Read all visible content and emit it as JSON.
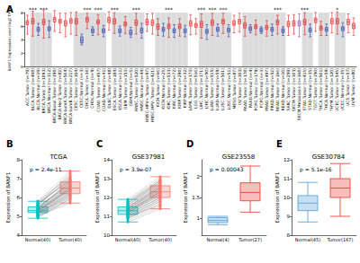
{
  "chart_data": [
    {
      "type": "boxplot",
      "panel": "A",
      "ylabel": "BANF1 Expression Level (log2 TPM)",
      "categories": [
        "ACC.Tumor (n=79)",
        "BLCA.Tumor (n=408)",
        "BLCA.Normal (n=19)",
        "BRCA.Tumor (n=1093)",
        "BRCA.Normal (n=112)",
        "BRCA-Basal.Tumor (n=190)",
        "BRCA-Her2.Tumor (n=82)",
        "BRCA-LumA.Tumor (n=564)",
        "BRCA-LumB.Tumor (n=217)",
        "CESC.Tumor (n=304)",
        "CESC.Normal (n=3)",
        "CHOL.Tumor (n=36)",
        "CHOL.Normal (n=9)",
        "COAD.Tumor (n=457)",
        "COAD.Normal (n=41)",
        "DLBC.Tumor (n=48)",
        "ESCA.Tumor (n=184)",
        "ESCA.Normal (n=11)",
        "GBM.Tumor (n=153)",
        "GBM.Normal (n=5)",
        "HNSC.Tumor (n=520)",
        "HNSC.Normal (n=44)",
        "HNSC-HPV+.Tumor (n=97)",
        "HNSC-HPV-.Tumor (n=421)",
        "KICH.Tumor (n=66)",
        "KICH.Normal (n=25)",
        "KIRC.Tumor (n=533)",
        "KIRC.Normal (n=72)",
        "KIRP.Tumor (n=290)",
        "KIRP.Normal (n=32)",
        "LAML.Tumor (n=173)",
        "LGG.Tumor (n=516)",
        "LIHC.Tumor (n=371)",
        "LIHC.Normal (n=50)",
        "LUAD.Tumor (n=515)",
        "LUAD.Normal (n=59)",
        "LUSC.Tumor (n=501)",
        "LUSC.Normal (n=51)",
        "MESO.Tumor (n=87)",
        "OV.Tumor (n=303)",
        "PAAD.Tumor (n=178)",
        "PAAD.Normal (n=4)",
        "PCPG.Tumor (n=179)",
        "PCPG.Normal (n=3)",
        "PRAD.Tumor (n=497)",
        "PRAD.Normal (n=52)",
        "READ.Tumor (n=166)",
        "READ.Normal (n=10)",
        "SARC.Tumor (n=259)",
        "SKCM.Tumor (n=103)",
        "SKCM.Metastasis (n=368)",
        "STAD.Tumor (n=415)",
        "STAD.Normal (n=35)",
        "TGCT.Tumor (n=150)",
        "THCA.Tumor (n=501)",
        "THCA.Normal (n=59)",
        "THYM.Tumor (n=120)",
        "UCEC.Tumor (n=545)",
        "UCEC.Normal (n=35)",
        "UCS.Tumor (n=57)",
        "UVM.Tumor (n=80)"
      ],
      "values": [
        [
          4.8,
          6.2,
          6.5,
          6.8,
          7.6
        ],
        [
          4.5,
          6.3,
          6.7,
          7.1,
          8.2
        ],
        [
          4.6,
          5.2,
          5.5,
          5.8,
          6.4
        ],
        [
          4.2,
          6.2,
          6.6,
          7.0,
          8.3
        ],
        [
          4.3,
          5.3,
          5.6,
          5.9,
          6.8
        ],
        [
          5.2,
          6.6,
          7.0,
          7.3,
          8.3
        ],
        [
          5.0,
          6.4,
          6.7,
          7.0,
          7.9
        ],
        [
          4.4,
          6.0,
          6.4,
          6.8,
          7.9
        ],
        [
          4.8,
          6.4,
          6.8,
          7.1,
          8.0
        ],
        [
          4.6,
          6.3,
          6.7,
          7.1,
          8.1
        ],
        [
          3.2,
          3.5,
          3.9,
          4.4,
          4.8
        ],
        [
          5.6,
          6.6,
          7.0,
          7.3,
          7.9
        ],
        [
          4.6,
          5.0,
          5.3,
          5.6,
          5.9
        ],
        [
          4.7,
          6.3,
          6.6,
          6.9,
          7.7
        ],
        [
          4.4,
          5.0,
          5.3,
          5.6,
          6.1
        ],
        [
          5.4,
          6.5,
          6.9,
          7.3,
          8.1
        ],
        [
          4.9,
          6.3,
          6.7,
          7.1,
          8.0
        ],
        [
          4.5,
          5.0,
          5.3,
          5.6,
          6.0
        ],
        [
          4.9,
          6.0,
          6.3,
          6.6,
          7.4
        ],
        [
          4.3,
          4.7,
          5.0,
          5.4,
          5.8
        ],
        [
          4.8,
          6.1,
          6.5,
          6.9,
          7.9
        ],
        [
          4.2,
          5.0,
          5.4,
          5.7,
          6.4
        ],
        [
          5.2,
          6.2,
          6.6,
          7.0,
          7.8
        ],
        [
          4.8,
          6.1,
          6.5,
          6.9,
          7.9
        ],
        [
          4.6,
          5.5,
          5.9,
          6.3,
          7.1
        ],
        [
          4.5,
          5.2,
          5.5,
          5.8,
          6.4
        ],
        [
          4.3,
          5.6,
          6.0,
          6.3,
          7.2
        ],
        [
          4.3,
          5.0,
          5.3,
          5.6,
          6.2
        ],
        [
          4.5,
          5.6,
          5.9,
          6.3,
          7.1
        ],
        [
          4.4,
          5.0,
          5.3,
          5.6,
          6.1
        ],
        [
          4.7,
          6.0,
          6.4,
          6.8,
          7.7
        ],
        [
          4.8,
          5.8,
          6.1,
          6.4,
          7.1
        ],
        [
          4.2,
          5.8,
          6.3,
          6.7,
          7.8
        ],
        [
          4.0,
          4.9,
          5.2,
          5.5,
          6.2
        ],
        [
          4.6,
          6.1,
          6.5,
          6.9,
          7.9
        ],
        [
          4.5,
          5.2,
          5.5,
          5.8,
          6.3
        ],
        [
          4.9,
          6.3,
          6.7,
          7.0,
          7.9
        ],
        [
          4.4,
          5.1,
          5.4,
          5.7,
          6.2
        ],
        [
          5.0,
          6.1,
          6.4,
          6.8,
          7.6
        ],
        [
          5.1,
          6.3,
          6.7,
          7.0,
          7.9
        ],
        [
          4.5,
          5.7,
          6.1,
          6.5,
          7.4
        ],
        [
          5.0,
          5.3,
          5.6,
          5.9,
          6.2
        ],
        [
          4.7,
          5.6,
          5.9,
          6.2,
          6.9
        ],
        [
          4.9,
          5.1,
          5.4,
          5.7,
          5.9
        ],
        [
          4.5,
          5.5,
          5.8,
          6.1,
          6.8
        ],
        [
          4.6,
          5.2,
          5.5,
          5.8,
          6.3
        ],
        [
          4.8,
          6.2,
          6.6,
          6.9,
          7.6
        ],
        [
          4.6,
          5.0,
          5.3,
          5.6,
          5.9
        ],
        [
          4.6,
          5.9,
          6.3,
          6.7,
          7.6
        ],
        [
          4.8,
          6.0,
          6.4,
          6.8,
          7.7
        ],
        [
          4.4,
          6.0,
          6.4,
          6.8,
          7.8
        ],
        [
          4.7,
          6.2,
          6.6,
          7.0,
          8.0
        ],
        [
          4.4,
          5.1,
          5.4,
          5.7,
          6.3
        ],
        [
          5.2,
          6.5,
          6.9,
          7.2,
          8.0
        ],
        [
          4.6,
          5.4,
          5.7,
          6.0,
          6.7
        ],
        [
          4.6,
          5.2,
          5.5,
          5.8,
          6.3
        ],
        [
          5.0,
          6.3,
          6.7,
          7.1,
          8.0
        ],
        [
          4.8,
          6.3,
          6.7,
          7.1,
          8.1
        ],
        [
          4.4,
          5.3,
          5.6,
          5.9,
          6.5
        ],
        [
          5.0,
          6.2,
          6.6,
          7.0,
          7.8
        ],
        [
          4.6,
          5.6,
          6.0,
          6.4,
          7.2
        ]
      ],
      "colors": [
        "#E41A1C",
        "#E41A1C",
        "#2C3EAA",
        "#E41A1C",
        "#2C3EAA",
        "#E41A1C",
        "#E41A1C",
        "#E41A1C",
        "#E41A1C",
        "#E41A1C",
        "#2C3EAA",
        "#E41A1C",
        "#2C3EAA",
        "#E41A1C",
        "#2C3EAA",
        "#E41A1C",
        "#E41A1C",
        "#2C3EAA",
        "#E41A1C",
        "#2C3EAA",
        "#E41A1C",
        "#2C3EAA",
        "#E41A1C",
        "#E41A1C",
        "#E41A1C",
        "#2C3EAA",
        "#E41A1C",
        "#2C3EAA",
        "#E41A1C",
        "#2C3EAA",
        "#E41A1C",
        "#E41A1C",
        "#E41A1C",
        "#2C3EAA",
        "#E41A1C",
        "#2C3EAA",
        "#E41A1C",
        "#2C3EAA",
        "#E41A1C",
        "#E41A1C",
        "#E41A1C",
        "#2C3EAA",
        "#E41A1C",
        "#2C3EAA",
        "#E41A1C",
        "#2C3EAA",
        "#E41A1C",
        "#2C3EAA",
        "#E41A1C",
        "#E41A1C",
        "#8E44AD",
        "#E41A1C",
        "#2C3EAA",
        "#E41A1C",
        "#E41A1C",
        "#2C3EAA",
        "#E41A1C",
        "#E41A1C",
        "#2C3EAA",
        "#E41A1C",
        "#E41A1C"
      ],
      "significance": [
        null,
        "***",
        null,
        "***",
        null,
        null,
        null,
        null,
        null,
        null,
        null,
        "***",
        null,
        "***",
        null,
        null,
        "***",
        null,
        null,
        null,
        "***",
        null,
        null,
        null,
        null,
        null,
        "***",
        null,
        null,
        null,
        null,
        null,
        "***",
        null,
        "***",
        null,
        "***",
        null,
        null,
        null,
        null,
        null,
        null,
        null,
        null,
        null,
        "***",
        null,
        null,
        null,
        null,
        "***",
        null,
        null,
        null,
        null,
        null,
        "*",
        null,
        null,
        null
      ],
      "ylim": [
        0,
        8
      ],
      "yticks": [
        0,
        2,
        4,
        6,
        8
      ]
    },
    {
      "type": "paired",
      "panel": "B",
      "title": "TCGA",
      "ylabel": "Expression of BANF1",
      "annotation": "p = 2.4e-11",
      "categories": [
        "Normal(40)",
        "Tumor(40)"
      ],
      "colors": [
        "#00BFC4",
        "#F8766D"
      ],
      "values": [
        [
          5.2,
          5.4,
          5.0,
          5.6,
          5.3,
          5.1,
          5.5,
          5.7,
          4.9,
          5.3,
          5.4,
          5.2,
          5.8,
          5.0,
          5.5,
          5.3,
          5.6,
          5.1,
          5.4,
          5.2,
          5.7,
          5.3,
          5.0,
          5.5,
          5.4,
          5.2,
          5.6,
          5.3,
          5.1,
          5.8,
          5.4,
          5.2,
          5.5,
          5.0,
          5.3,
          5.6,
          5.4,
          5.1,
          5.7,
          5.3
        ],
        [
          6.4,
          6.8,
          6.1,
          7.0,
          6.5,
          5.9,
          6.7,
          7.2,
          6.0,
          6.3,
          6.9,
          6.2,
          7.1,
          5.8,
          6.6,
          6.4,
          7.3,
          6.1,
          6.8,
          6.5,
          6.9,
          6.2,
          5.7,
          6.7,
          6.4,
          6.0,
          7.0,
          6.6,
          6.3,
          7.4,
          6.5,
          6.1,
          6.8,
          5.9,
          6.4,
          7.1,
          6.6,
          6.2,
          6.9,
          6.5
        ]
      ],
      "ylim": [
        4,
        8
      ],
      "yticks": [
        4,
        5,
        6,
        7,
        8
      ]
    },
    {
      "type": "paired",
      "panel": "C",
      "title": "GSE37981",
      "ylabel": "Expression of BANF1",
      "annotation": "p = 3.9e-07",
      "categories": [
        "Normal(40)",
        "Tumor(40)"
      ],
      "colors": [
        "#00BFC4",
        "#F8766D"
      ],
      "values": [
        [
          11.2,
          11.5,
          10.9,
          11.8,
          11.3,
          11.0,
          11.6,
          11.4,
          10.8,
          11.3,
          11.7,
          11.1,
          11.5,
          11.2,
          10.7,
          11.4,
          11.9,
          11.0,
          11.3,
          11.6,
          11.2,
          11.5,
          10.9,
          11.4,
          11.1,
          11.7,
          11.3,
          11.0,
          11.5,
          11.2,
          11.8,
          11.4,
          10.9,
          11.3,
          11.6,
          11.1,
          11.4,
          11.2,
          11.7,
          11.0
        ],
        [
          12.1,
          12.6,
          11.8,
          12.9,
          12.3,
          11.6,
          12.7,
          12.4,
          11.5,
          12.2,
          12.8,
          12.0,
          12.5,
          12.3,
          11.4,
          12.6,
          13.1,
          11.9,
          12.4,
          12.8,
          12.2,
          12.7,
          11.7,
          12.5,
          12.0,
          12.9,
          12.3,
          11.8,
          12.6,
          12.1,
          13.0,
          12.5,
          11.6,
          12.3,
          12.8,
          12.0,
          12.4,
          12.2,
          12.9,
          11.9
        ]
      ],
      "ylim": [
        10,
        14
      ],
      "yticks": [
        10,
        11,
        12,
        13,
        14
      ]
    },
    {
      "type": "boxplot",
      "panel": "D",
      "title": "GSE23558",
      "ylabel": "Expression of BANF1",
      "annotation": "p = 0.00043",
      "categories": [
        "Normal(4)",
        "Tumor(27)"
      ],
      "colors": [
        "#5DA5DA",
        "#E8453C"
      ],
      "values": [
        [
          0.85,
          0.9,
          0.95,
          1.02,
          1.05
        ],
        [
          1.15,
          1.42,
          1.62,
          1.85,
          2.25
        ]
      ],
      "ylim": [
        0.6,
        2.4
      ],
      "yticks": [
        1,
        1.5,
        2
      ]
    },
    {
      "type": "boxplot",
      "panel": "E",
      "title": "GSE30784",
      "ylabel": "Expression of BANF1",
      "annotation": "p = 5.1e-16",
      "categories": [
        "Normal(45)",
        "Tumor(167)"
      ],
      "colors": [
        "#5DA5DA",
        "#E8453C"
      ],
      "values": [
        [
          8.7,
          9.3,
          9.7,
          10.1,
          10.8
        ],
        [
          9.0,
          10.0,
          10.5,
          11.0,
          11.8
        ]
      ],
      "ylim": [
        8,
        12
      ],
      "yticks": [
        8,
        9,
        10,
        11,
        12
      ]
    }
  ]
}
